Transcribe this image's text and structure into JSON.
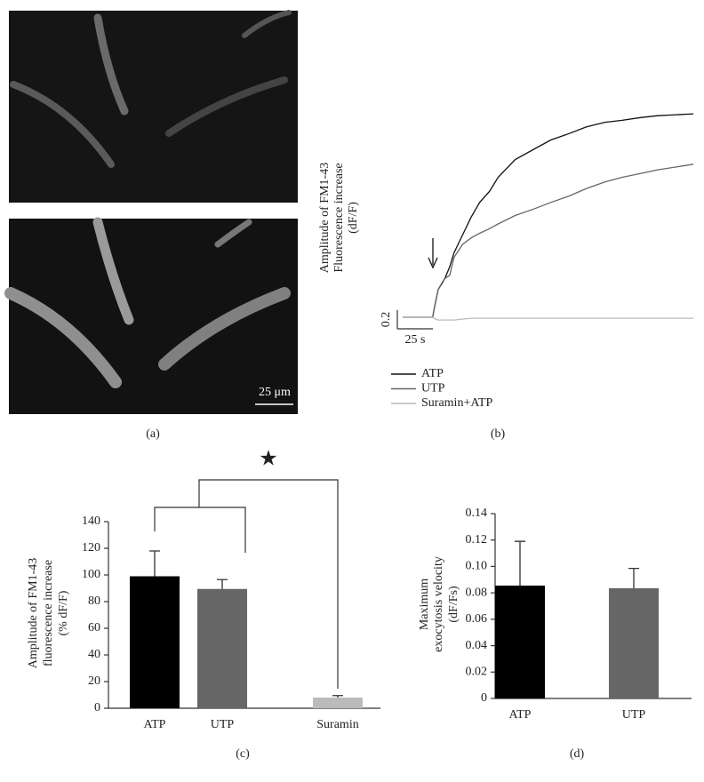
{
  "panel_a": {
    "scale_bar_label": "25 μm",
    "caption": "(a)"
  },
  "chart_data": [
    {
      "type": "line",
      "caption": "(b)",
      "ylabel": [
        "Amplitude of FM1-43",
        "Fluorescence increase",
        "(dF/F)"
      ],
      "scale_bars": {
        "x": {
          "value": 25,
          "label": "25 s"
        },
        "y": 0.2
      },
      "x": [
        0,
        21,
        23,
        25,
        28,
        30,
        33,
        36,
        42,
        48,
        54,
        61,
        67,
        79,
        92,
        104,
        117,
        129,
        142,
        154,
        167,
        179,
        192,
        204
      ],
      "xlim": [
        0,
        204
      ],
      "ylim": [
        -0.1,
        2.3
      ],
      "series": [
        {
          "name": "ATP",
          "color": "#111111",
          "values": [
            0,
            0,
            0.16,
            0.3,
            0.37,
            0.43,
            0.54,
            0.69,
            0.88,
            1.07,
            1.23,
            1.35,
            1.5,
            1.69,
            1.8,
            1.9,
            1.97,
            2.04,
            2.09,
            2.11,
            2.14,
            2.16,
            2.17,
            2.18
          ]
        },
        {
          "name": "UTP",
          "color": "#666666",
          "values": [
            0,
            0,
            0.16,
            0.3,
            0.38,
            0.42,
            0.45,
            0.64,
            0.78,
            0.85,
            0.9,
            0.95,
            1.0,
            1.09,
            1.16,
            1.23,
            1.3,
            1.38,
            1.45,
            1.5,
            1.54,
            1.58,
            1.61,
            1.64
          ]
        },
        {
          "name": "Suramin+ATP",
          "color": "#bbbbbb",
          "values": [
            0,
            0,
            -0.02,
            -0.03,
            -0.03,
            -0.03,
            -0.03,
            -0.03,
            -0.02,
            -0.01,
            -0.01,
            -0.01,
            -0.01,
            -0.01,
            -0.01,
            -0.01,
            -0.01,
            -0.01,
            -0.01,
            -0.01,
            -0.01,
            -0.01,
            -0.01,
            -0.01
          ]
        }
      ]
    },
    {
      "type": "bar",
      "caption": "(c)",
      "annotation": "★",
      "ylabel": [
        "Amplitude of FM1-43",
        "fluorescence increase",
        "(% dF/F)"
      ],
      "categories": [
        "ATP",
        "UTP",
        "Suramin"
      ],
      "values": [
        99,
        89.5,
        8
      ],
      "errors": [
        19,
        7,
        1.5
      ],
      "colors": [
        "#000000",
        "#666666",
        "#bbbbbb"
      ],
      "ylim": [
        0,
        140
      ],
      "yticks": [
        0,
        20,
        40,
        60,
        80,
        100,
        120,
        140
      ]
    },
    {
      "type": "bar",
      "caption": "(d)",
      "ylabel": [
        "Maximum",
        "exocytosis velocity",
        "(dF/Fs)"
      ],
      "categories": [
        "ATP",
        "UTP"
      ],
      "values": [
        0.0855,
        0.0835
      ],
      "errors": [
        0.0335,
        0.015
      ],
      "colors": [
        "#000000",
        "#666666"
      ],
      "ylim": [
        0,
        0.14
      ],
      "yticks": [
        0,
        0.02,
        0.04,
        0.06,
        0.08,
        {
          "value": 0.1,
          "label": "0.10"
        },
        0.12,
        0.14
      ]
    }
  ]
}
